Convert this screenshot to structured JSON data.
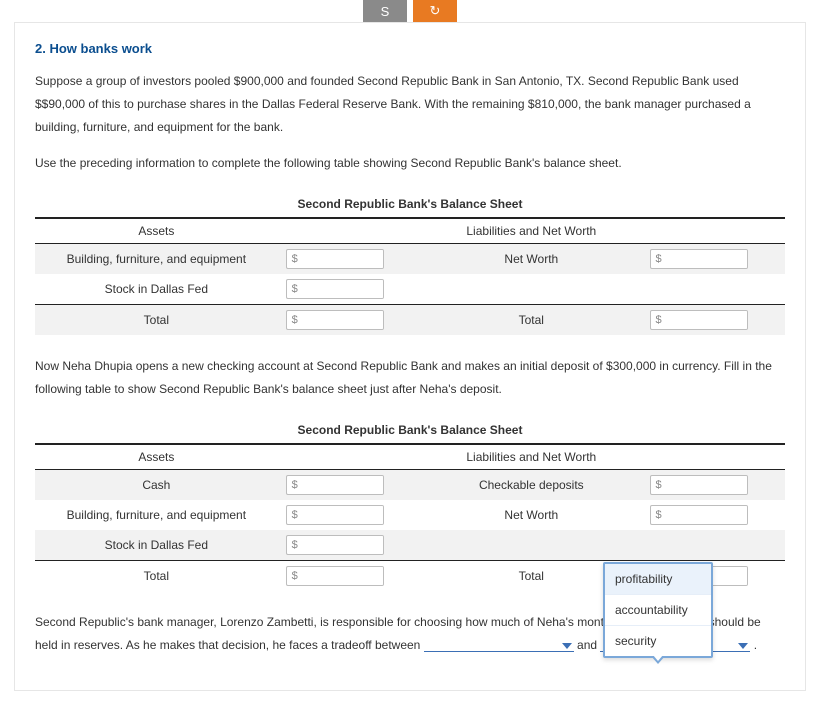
{
  "tabs": {
    "left_glyph": "S",
    "right_glyph": "↻"
  },
  "question_title": "2. How banks work",
  "para1": "Suppose a group of investors pooled $900,000 and founded Second Republic Bank in San Antonio, TX. Second Republic Bank used $$90,000 of this to purchase shares in the Dallas Federal Reserve Bank. With the remaining $810,000, the bank manager purchased a building, furniture, and equipment for the bank.",
  "para1b": "Use the preceding information to complete the following table showing Second Republic Bank's balance sheet.",
  "sheet1": {
    "title": "Second Republic Bank's Balance Sheet",
    "assets_header": "Assets",
    "liab_header": "Liabilities and Net Worth",
    "rows": [
      {
        "asset": "Building, furniture, and equipment",
        "liab": "Net Worth",
        "has_liab_input": true
      },
      {
        "asset": "Stock in Dallas Fed",
        "liab": "",
        "has_liab_input": false
      },
      {
        "asset": "Total",
        "liab": "Total",
        "has_liab_input": true
      }
    ],
    "currency": "$"
  },
  "para2": "Now Neha Dhupia opens a new checking account at Second Republic Bank and makes an initial deposit of $300,000 in currency. Fill in the following table to show Second Republic Bank's balance sheet just after Neha's deposit.",
  "sheet2": {
    "title": "Second Republic Bank's Balance Sheet",
    "assets_header": "Assets",
    "liab_header": "Liabilities and Net Worth",
    "rows": [
      {
        "asset": "Cash",
        "liab": "Checkable deposits",
        "has_liab_input": true
      },
      {
        "asset": "Building, furniture, and equipment",
        "liab": "Net Worth",
        "has_liab_input": true
      },
      {
        "asset": "Stock in Dallas Fed",
        "liab": "",
        "has_liab_input": false
      },
      {
        "asset": "Total",
        "liab": "Total",
        "has_liab_input": true
      }
    ],
    "currency": "$"
  },
  "para3_a": "Second Republic's bank manager, Lorenzo Zambetti, is responsible for choosing how much of Neha's mon",
  "para3_b": "t out and how much should be held in reserves. As he makes that decision, he faces a tradeoff between ",
  "para3_and": " and ",
  "para3_end": " .",
  "dropdown_options": [
    "profitability",
    "accountability",
    "security"
  ],
  "colors": {
    "title": "#0b4e8f",
    "tab_grey": "#8a8a8a",
    "tab_orange": "#e87a22",
    "dd_border": "#7ba8d9",
    "dd_hl": "#eaf2fb"
  }
}
